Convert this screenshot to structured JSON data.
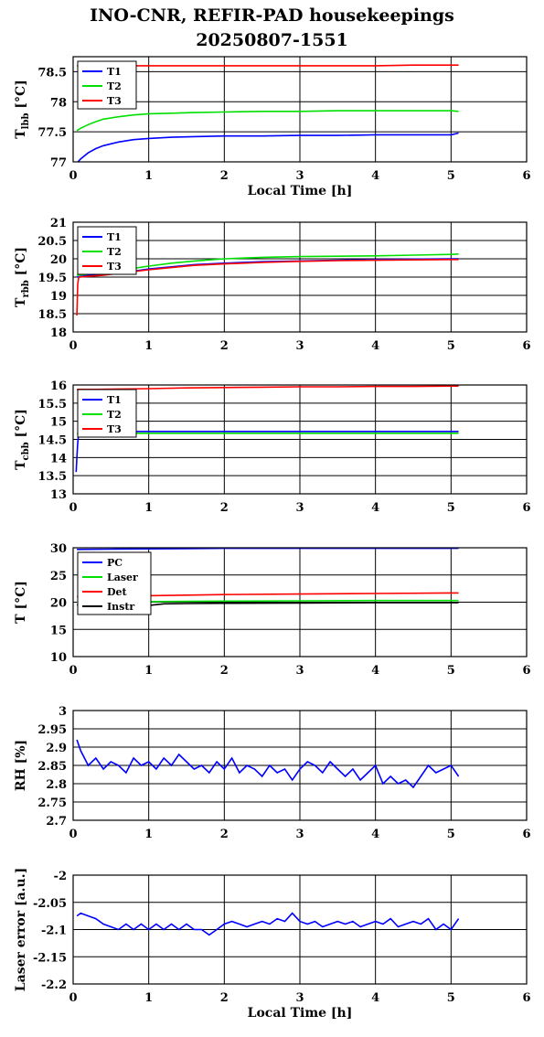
{
  "header": {
    "title_line1": "INO-CNR, REFIR-PAD housekeepings",
    "title_line2": "20250807-1551"
  },
  "chart_data": [
    {
      "type": "line",
      "id": "tlbb",
      "ylabel": "Tlbb [°C]",
      "ylabel_main": "T",
      "ylabel_sub": "lbb",
      "ylabel_unit": "[°C]",
      "xlabel": "Local Time [h]",
      "xlim": [
        0,
        6
      ],
      "ylim": [
        77,
        78.75
      ],
      "yticks": [
        77,
        77.5,
        78,
        78.5
      ],
      "xticks": [
        0,
        1,
        2,
        3,
        4,
        5,
        6
      ],
      "grid": true,
      "legend": "top-left",
      "series": [
        {
          "name": "T1",
          "color": "#0000ff",
          "x": [
            0.05,
            0.1,
            0.2,
            0.3,
            0.4,
            0.5,
            0.6,
            0.8,
            1.0,
            1.3,
            1.6,
            2.0,
            2.5,
            3.0,
            3.5,
            4.0,
            4.5,
            5.0,
            5.1
          ],
          "y": [
            76.98,
            77.05,
            77.15,
            77.22,
            77.27,
            77.3,
            77.33,
            77.37,
            77.39,
            77.41,
            77.42,
            77.43,
            77.43,
            77.44,
            77.44,
            77.45,
            77.45,
            77.45,
            77.48
          ]
        },
        {
          "name": "T2",
          "color": "#00e000",
          "x": [
            0.05,
            0.1,
            0.2,
            0.3,
            0.4,
            0.6,
            0.8,
            1.0,
            1.3,
            1.6,
            2.0,
            2.5,
            3.0,
            3.5,
            4.0,
            4.5,
            5.0,
            5.1
          ],
          "y": [
            77.52,
            77.56,
            77.62,
            77.67,
            77.71,
            77.75,
            77.78,
            77.8,
            77.81,
            77.82,
            77.83,
            77.84,
            77.84,
            77.85,
            77.85,
            77.85,
            77.85,
            77.84
          ]
        },
        {
          "name": "T3",
          "color": "#ff0000",
          "x": [
            0.05,
            0.5,
            1.0,
            1.5,
            2.0,
            2.5,
            3.0,
            3.5,
            4.0,
            4.5,
            5.0,
            5.1
          ],
          "y": [
            78.6,
            78.6,
            78.6,
            78.6,
            78.6,
            78.6,
            78.6,
            78.6,
            78.6,
            78.61,
            78.61,
            78.61
          ]
        }
      ]
    },
    {
      "type": "line",
      "id": "trbb",
      "ylabel": "Trbb [°C]",
      "ylabel_main": "T",
      "ylabel_sub": "rbb",
      "ylabel_unit": "[°C]",
      "xlabel": "",
      "xlim": [
        0,
        6
      ],
      "ylim": [
        18,
        21
      ],
      "yticks": [
        18,
        18.5,
        19,
        19.5,
        20,
        20.5,
        21
      ],
      "xticks": [
        0,
        1,
        2,
        3,
        4,
        5,
        6
      ],
      "grid": true,
      "legend": "top-left",
      "series": [
        {
          "name": "T1",
          "color": "#0000ff",
          "x": [
            0.05,
            0.2,
            0.4,
            0.6,
            0.8,
            1.0,
            1.3,
            1.6,
            2.0,
            2.5,
            3.0,
            3.5,
            4.0,
            4.5,
            5.0,
            5.1
          ],
          "y": [
            19.5,
            19.55,
            19.58,
            19.62,
            19.66,
            19.72,
            19.78,
            19.84,
            19.88,
            19.92,
            19.94,
            19.96,
            19.98,
            19.99,
            20.0,
            20.0
          ]
        },
        {
          "name": "T2",
          "color": "#00e000",
          "x": [
            0.05,
            0.2,
            0.4,
            0.6,
            0.8,
            1.0,
            1.3,
            1.6,
            2.0,
            2.5,
            3.0,
            3.5,
            4.0,
            4.5,
            5.0,
            5.1
          ],
          "y": [
            19.55,
            19.58,
            19.62,
            19.68,
            19.74,
            19.8,
            19.88,
            19.94,
            20.0,
            20.04,
            20.06,
            20.07,
            20.08,
            20.1,
            20.12,
            20.13
          ]
        },
        {
          "name": "T3",
          "color": "#ff0000",
          "x": [
            0.05,
            0.06,
            0.07,
            0.08,
            0.2,
            0.4,
            0.6,
            0.8,
            1.0,
            1.3,
            1.6,
            2.0,
            2.5,
            3.0,
            3.5,
            4.0,
            4.5,
            5.0,
            5.1
          ],
          "y": [
            18.45,
            19.3,
            19.45,
            19.5,
            19.52,
            19.55,
            19.6,
            19.65,
            19.7,
            19.76,
            19.82,
            19.86,
            19.9,
            19.93,
            19.95,
            19.96,
            19.97,
            19.98,
            19.98
          ]
        }
      ]
    },
    {
      "type": "line",
      "id": "tcbb",
      "ylabel": "Tcbb [°C]",
      "ylabel_main": "T",
      "ylabel_sub": "cbb",
      "ylabel_unit": "[°C]",
      "xlabel": "",
      "xlim": [
        0,
        6
      ],
      "ylim": [
        13,
        16
      ],
      "yticks": [
        13,
        13.5,
        14,
        14.5,
        15,
        15.5,
        16
      ],
      "xticks": [
        0,
        1,
        2,
        3,
        4,
        5,
        6
      ],
      "grid": true,
      "legend": "top-left",
      "series": [
        {
          "name": "T1",
          "color": "#0000ff",
          "x": [
            0.04,
            0.05,
            0.06,
            0.07,
            0.08,
            0.1,
            0.3,
            0.6,
            1.0,
            1.5,
            2.0,
            2.5,
            3.0,
            3.5,
            4.0,
            4.5,
            5.0,
            5.1
          ],
          "y": [
            13.6,
            14.0,
            14.4,
            14.6,
            14.68,
            14.7,
            14.72,
            14.72,
            14.72,
            14.72,
            14.72,
            14.72,
            14.72,
            14.72,
            14.72,
            14.72,
            14.72,
            14.72
          ]
        },
        {
          "name": "T2",
          "color": "#00e000",
          "x": [
            0.05,
            0.1,
            0.3,
            0.6,
            1.0,
            1.5,
            2.0,
            2.5,
            3.0,
            3.5,
            4.0,
            4.5,
            5.0,
            5.1
          ],
          "y": [
            14.66,
            14.67,
            14.67,
            14.67,
            14.67,
            14.67,
            14.67,
            14.67,
            14.67,
            14.67,
            14.67,
            14.67,
            14.67,
            14.67
          ]
        },
        {
          "name": "T3",
          "color": "#ff0000",
          "x": [
            0.05,
            0.3,
            0.6,
            1.0,
            1.5,
            2.0,
            2.5,
            3.0,
            3.5,
            4.0,
            4.5,
            5.0,
            5.1
          ],
          "y": [
            15.88,
            15.88,
            15.89,
            15.9,
            15.92,
            15.93,
            15.94,
            15.95,
            15.95,
            15.96,
            15.96,
            15.97,
            15.97
          ]
        }
      ]
    },
    {
      "type": "line",
      "id": "temps",
      "ylabel": "T [°C]",
      "xlabel": "",
      "xlim": [
        0,
        6
      ],
      "ylim": [
        10,
        30
      ],
      "yticks": [
        10,
        15,
        20,
        25,
        30
      ],
      "xticks": [
        0,
        1,
        2,
        3,
        4,
        5,
        6
      ],
      "grid": true,
      "legend": "top-left",
      "series": [
        {
          "name": "PC",
          "color": "#0000ff",
          "x": [
            0.05,
            0.5,
            1.0,
            1.5,
            2.0,
            3.0,
            4.0,
            5.0,
            5.1
          ],
          "y": [
            29.7,
            29.75,
            29.8,
            29.85,
            29.9,
            29.9,
            29.9,
            29.9,
            29.9
          ]
        },
        {
          "name": "Laser",
          "color": "#00e000",
          "x": [
            0.05,
            0.5,
            1.0,
            1.5,
            2.0,
            3.0,
            4.0,
            5.0,
            5.1
          ],
          "y": [
            20.0,
            20.05,
            20.1,
            20.15,
            20.2,
            20.25,
            20.3,
            20.3,
            20.3
          ]
        },
        {
          "name": "Det",
          "color": "#ff0000",
          "x": [
            0.05,
            0.5,
            1.0,
            1.5,
            2.0,
            3.0,
            4.0,
            5.0,
            5.1
          ],
          "y": [
            21.0,
            21.1,
            21.2,
            21.3,
            21.4,
            21.5,
            21.6,
            21.7,
            21.7
          ]
        },
        {
          "name": "Instr",
          "color": "#000000",
          "x": [
            0.05,
            0.5,
            0.8,
            1.0,
            1.2,
            1.5,
            2.0,
            3.0,
            4.0,
            5.0,
            5.1
          ],
          "y": [
            19.5,
            19.55,
            19.6,
            19.4,
            19.7,
            19.75,
            19.8,
            19.85,
            19.9,
            19.9,
            19.9
          ]
        }
      ]
    },
    {
      "type": "line",
      "id": "rh",
      "ylabel": "RH [%]",
      "xlabel": "",
      "xlim": [
        0,
        6
      ],
      "ylim": [
        2.7,
        3
      ],
      "yticks": [
        2.7,
        2.75,
        2.8,
        2.85,
        2.9,
        2.95,
        3
      ],
      "xticks": [
        0,
        1,
        2,
        3,
        4,
        5,
        6
      ],
      "grid": true,
      "legend": "none",
      "series": [
        {
          "color": "#0000ff",
          "x": [
            0.05,
            0.1,
            0.2,
            0.3,
            0.4,
            0.5,
            0.6,
            0.7,
            0.8,
            0.9,
            1.0,
            1.1,
            1.2,
            1.3,
            1.4,
            1.5,
            1.6,
            1.7,
            1.8,
            1.9,
            2.0,
            2.1,
            2.2,
            2.3,
            2.4,
            2.5,
            2.6,
            2.7,
            2.8,
            2.9,
            3.0,
            3.1,
            3.2,
            3.3,
            3.4,
            3.5,
            3.6,
            3.7,
            3.8,
            3.9,
            4.0,
            4.1,
            4.2,
            4.3,
            4.4,
            4.5,
            4.6,
            4.7,
            4.8,
            4.9,
            5.0,
            5.1
          ],
          "y": [
            2.92,
            2.89,
            2.85,
            2.87,
            2.84,
            2.86,
            2.85,
            2.83,
            2.87,
            2.85,
            2.86,
            2.84,
            2.87,
            2.85,
            2.88,
            2.86,
            2.84,
            2.85,
            2.83,
            2.86,
            2.84,
            2.87,
            2.83,
            2.85,
            2.84,
            2.82,
            2.85,
            2.83,
            2.84,
            2.81,
            2.84,
            2.86,
            2.85,
            2.83,
            2.86,
            2.84,
            2.82,
            2.84,
            2.81,
            2.83,
            2.85,
            2.8,
            2.82,
            2.8,
            2.81,
            2.79,
            2.82,
            2.85,
            2.83,
            2.84,
            2.85,
            2.82
          ]
        }
      ]
    },
    {
      "type": "line",
      "id": "laser",
      "ylabel": "Laser error [a.u.]",
      "xlabel": "Local Time [h]",
      "xlim": [
        0,
        6
      ],
      "ylim": [
        -2.2,
        -2
      ],
      "yticks": [
        -2.2,
        -2.15,
        -2.1,
        -2.05,
        -2
      ],
      "xticks": [
        0,
        1,
        2,
        3,
        4,
        5,
        6
      ],
      "grid": true,
      "legend": "none",
      "series": [
        {
          "color": "#0000ff",
          "x": [
            0.05,
            0.1,
            0.2,
            0.3,
            0.4,
            0.5,
            0.6,
            0.7,
            0.8,
            0.9,
            1.0,
            1.1,
            1.2,
            1.3,
            1.4,
            1.5,
            1.6,
            1.7,
            1.8,
            1.9,
            2.0,
            2.1,
            2.2,
            2.3,
            2.4,
            2.5,
            2.6,
            2.7,
            2.8,
            2.9,
            3.0,
            3.1,
            3.2,
            3.3,
            3.4,
            3.5,
            3.6,
            3.7,
            3.8,
            3.9,
            4.0,
            4.1,
            4.2,
            4.3,
            4.4,
            4.5,
            4.6,
            4.7,
            4.8,
            4.9,
            5.0,
            5.1
          ],
          "y": [
            -2.075,
            -2.07,
            -2.075,
            -2.08,
            -2.09,
            -2.095,
            -2.1,
            -2.09,
            -2.1,
            -2.09,
            -2.1,
            -2.09,
            -2.1,
            -2.09,
            -2.1,
            -2.09,
            -2.1,
            -2.1,
            -2.11,
            -2.1,
            -2.09,
            -2.085,
            -2.09,
            -2.095,
            -2.09,
            -2.085,
            -2.09,
            -2.08,
            -2.085,
            -2.07,
            -2.085,
            -2.09,
            -2.085,
            -2.095,
            -2.09,
            -2.085,
            -2.09,
            -2.085,
            -2.095,
            -2.09,
            -2.085,
            -2.09,
            -2.08,
            -2.095,
            -2.09,
            -2.085,
            -2.09,
            -2.08,
            -2.1,
            -2.09,
            -2.1,
            -2.08
          ]
        }
      ]
    }
  ]
}
